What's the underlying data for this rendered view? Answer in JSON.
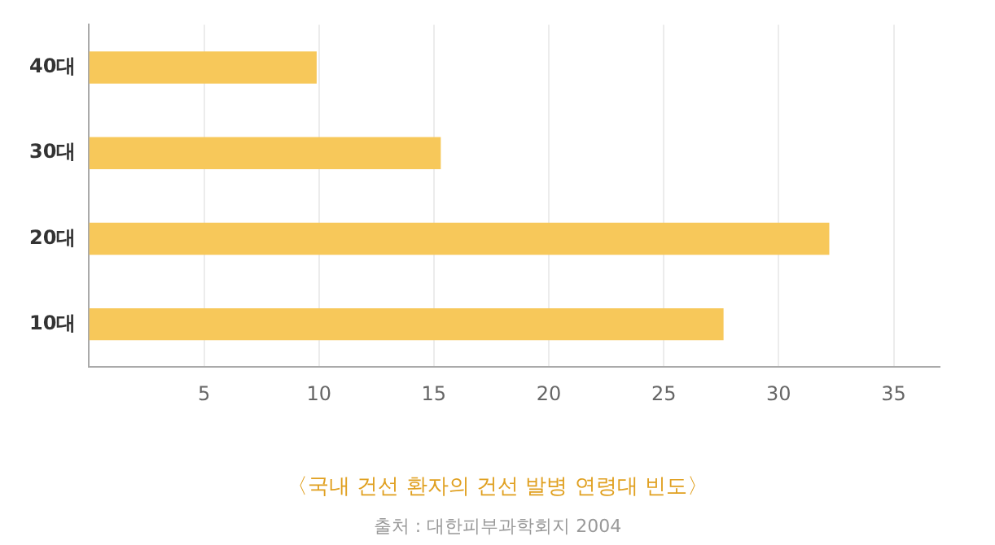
{
  "chart_data": {
    "type": "bar",
    "orientation": "horizontal",
    "title": "〈국내 건선 환자의 건선 발병 연령대 빈도〉",
    "categories": [
      "40대",
      "30대",
      "20대",
      "10대"
    ],
    "series": [
      {
        "color": "#f7c85a",
        "values": [
          9.9,
          15.3,
          32.2,
          27.6
        ]
      }
    ],
    "xlim": [
      0,
      37
    ],
    "xticks": [
      5,
      10,
      15,
      20,
      25,
      30,
      35
    ],
    "grid": "x",
    "legend": false,
    "annotations": [
      "출처 : 대한피부과학회지 2004"
    ]
  }
}
